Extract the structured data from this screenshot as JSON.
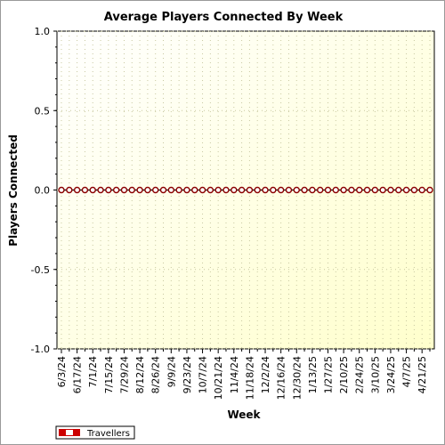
{
  "chart_data": {
    "type": "line",
    "title": "Average Players Connected By Week",
    "xlabel": "Week",
    "ylabel": "Players Connected",
    "ylim": [
      -1.0,
      1.0
    ],
    "y_ticks": [
      "1.0",
      "0.5",
      "0.0",
      "-0.5",
      "-1.0"
    ],
    "x": [
      "6/3/24",
      "6/10/24",
      "6/17/24",
      "6/24/24",
      "7/1/24",
      "7/8/24",
      "7/15/24",
      "7/22/24",
      "7/29/24",
      "8/5/24",
      "8/12/24",
      "8/19/24",
      "8/26/24",
      "9/2/24",
      "9/9/24",
      "9/16/24",
      "9/23/24",
      "9/30/24",
      "10/7/24",
      "10/14/24",
      "10/21/24",
      "10/28/24",
      "11/4/24",
      "11/11/24",
      "11/18/24",
      "11/25/24",
      "12/2/24",
      "12/9/24",
      "12/16/24",
      "12/23/24",
      "12/30/24",
      "1/6/25",
      "1/13/25",
      "1/20/25",
      "1/27/25",
      "2/3/25",
      "2/10/25",
      "2/17/25",
      "2/24/25",
      "3/3/25",
      "3/10/25",
      "3/17/25",
      "3/24/25",
      "3/31/25",
      "4/7/25",
      "4/14/25",
      "4/21/25",
      "4/28/25"
    ],
    "x_tick_labels_shown": [
      "6/3/24",
      "6/17/24",
      "7/1/24",
      "7/15/24",
      "7/29/24",
      "8/12/24",
      "8/26/24",
      "9/9/24",
      "9/23/24",
      "10/7/24",
      "10/21/24",
      "11/4/24",
      "11/18/24",
      "12/2/24",
      "12/16/24",
      "12/30/24",
      "1/13/25",
      "1/27/25",
      "2/10/25",
      "2/24/25",
      "3/10/25",
      "3/24/25",
      "4/7/25",
      "4/21/25"
    ],
    "series": [
      {
        "name": "Travellers",
        "color": "#8b0000",
        "values": [
          0,
          0,
          0,
          0,
          0,
          0,
          0,
          0,
          0,
          0,
          0,
          0,
          0,
          0,
          0,
          0,
          0,
          0,
          0,
          0,
          0,
          0,
          0,
          0,
          0,
          0,
          0,
          0,
          0,
          0,
          0,
          0,
          0,
          0,
          0,
          0,
          0,
          0,
          0,
          0,
          0,
          0,
          0,
          0,
          0,
          0,
          0,
          0
        ]
      }
    ],
    "grid": true,
    "legend": "bottom-left",
    "colors": {
      "plot_bg_light": "#ffffff",
      "plot_bg_dark": "#ffffcc"
    }
  }
}
